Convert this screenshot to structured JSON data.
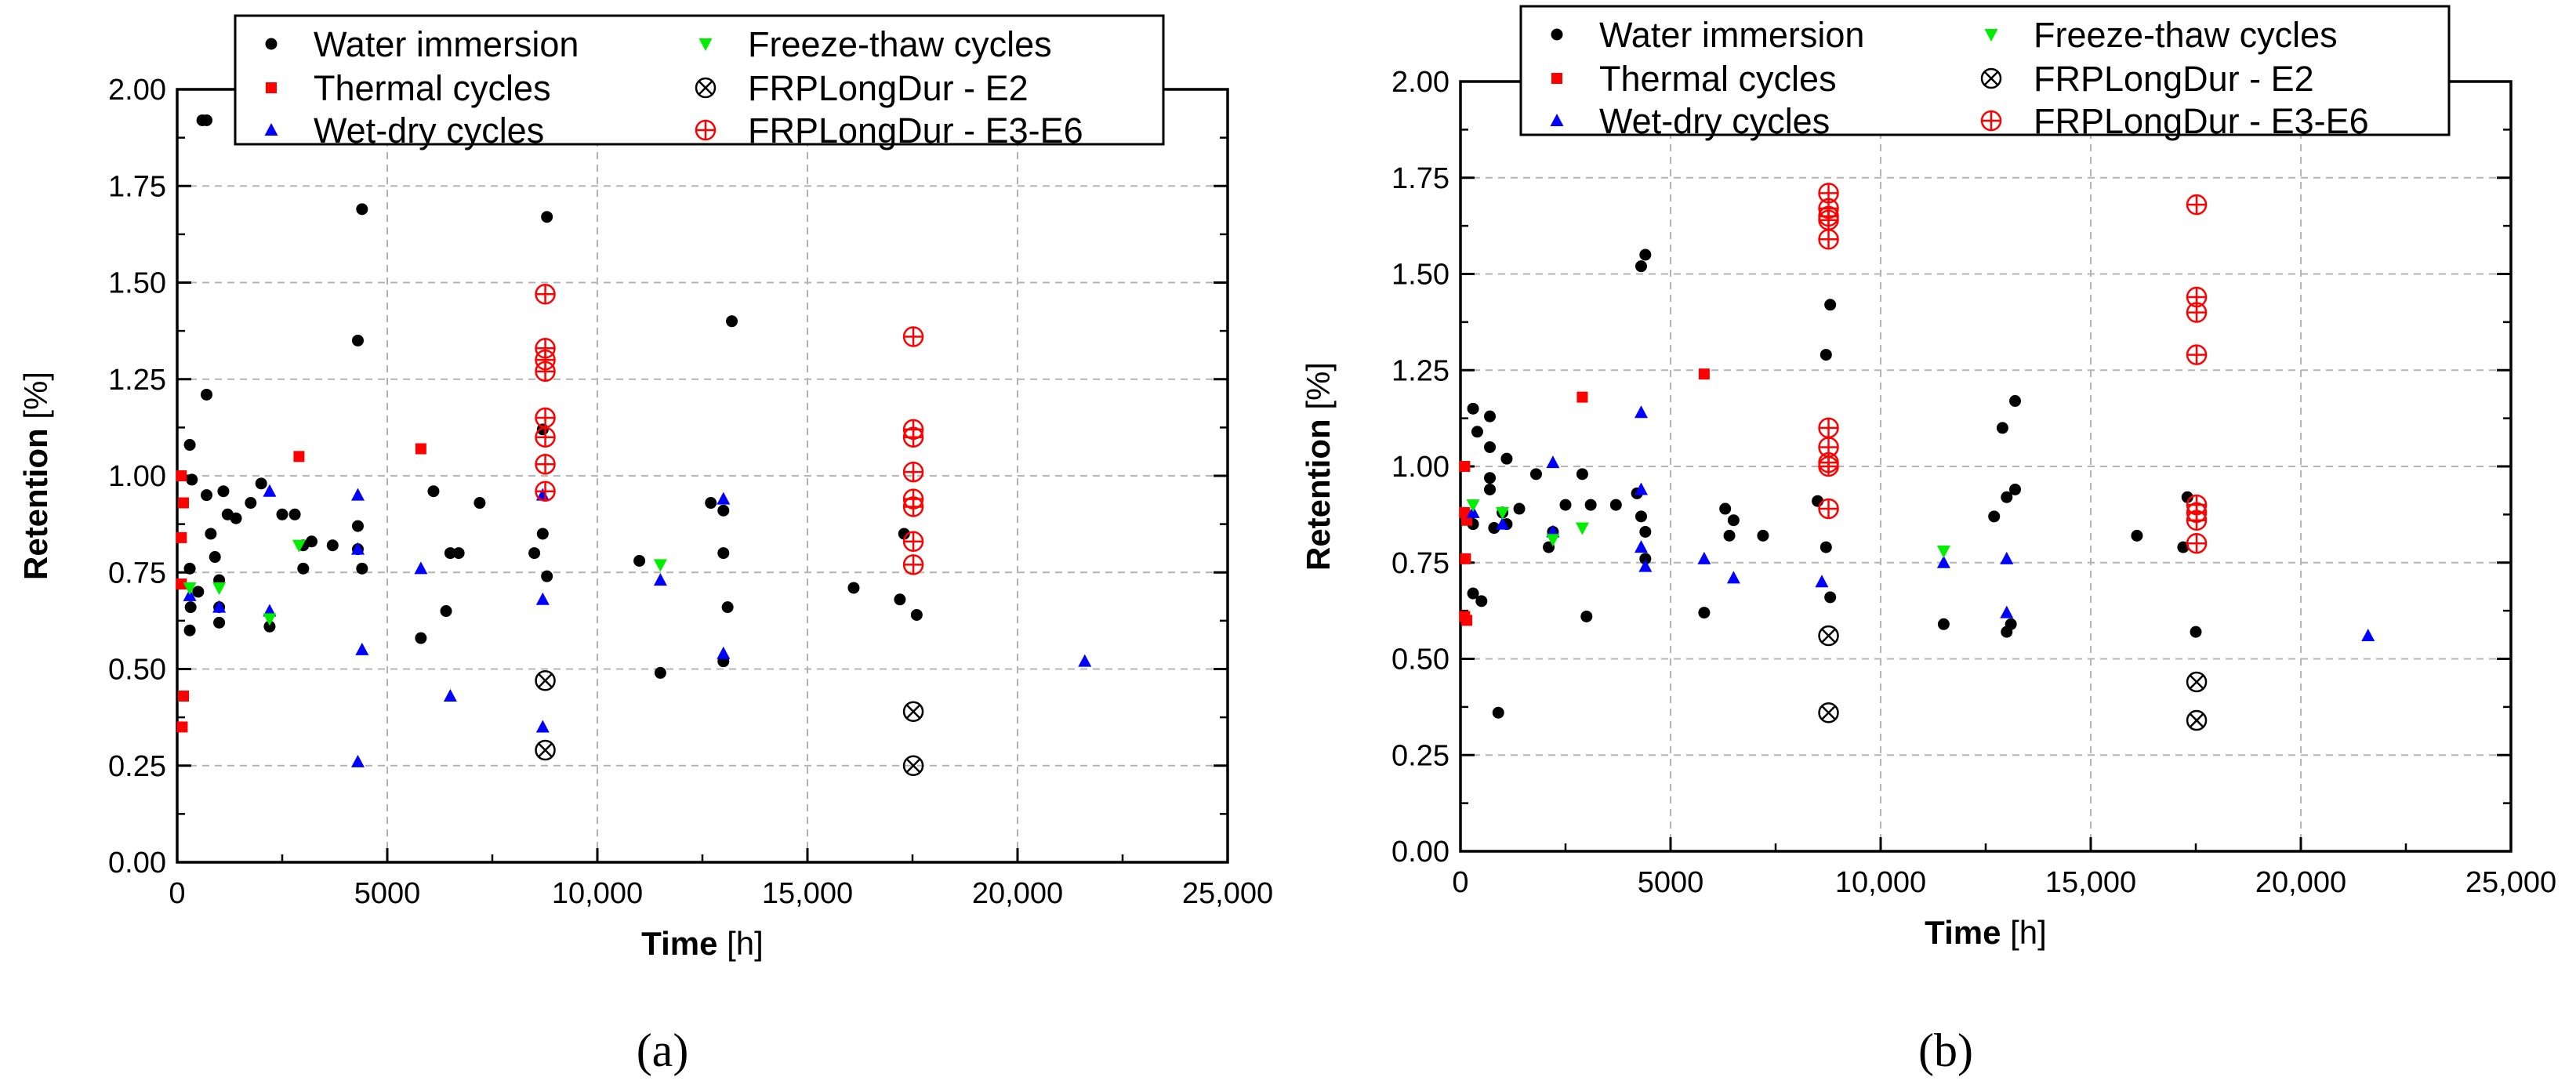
{
  "chart_data": [
    {
      "panel_label": "(a)",
      "type": "scatter",
      "xlabel": {
        "bold": "Time",
        "unit": " [h]"
      },
      "ylabel": {
        "bold": "Retention",
        "unit": " [%]"
      },
      "xlim": [
        0,
        25000
      ],
      "ylim": [
        0,
        2.0
      ],
      "xticks": [
        0,
        5000,
        10000,
        15000,
        20000,
        25000
      ],
      "xtick_labels": [
        "0",
        "5000",
        "10,000",
        "15,000",
        "20,000",
        "25,000"
      ],
      "yticks": [
        0,
        0.25,
        0.5,
        0.75,
        1.0,
        1.25,
        1.5,
        1.75,
        2.0
      ],
      "ytick_labels": [
        "0.00",
        "0.25",
        "0.50",
        "0.75",
        "1.00",
        "1.25",
        "1.50",
        "1.75",
        "2.00"
      ],
      "grid": true,
      "legend_position": "top-center",
      "series": [
        {
          "name": "Water immersion",
          "marker": "circle",
          "color": "#000000",
          "points": [
            [
              300,
              1.08
            ],
            [
              350,
              0.99
            ],
            [
              300,
              0.6
            ],
            [
              320,
              0.66
            ],
            [
              300,
              0.76
            ],
            [
              500,
              0.7
            ],
            [
              600,
              1.92
            ],
            [
              700,
              1.92
            ],
            [
              700,
              1.21
            ],
            [
              700,
              0.95
            ],
            [
              800,
              0.85
            ],
            [
              900,
              0.79
            ],
            [
              1000,
              0.73
            ],
            [
              1000,
              0.66
            ],
            [
              1000,
              0.62
            ],
            [
              1100,
              0.96
            ],
            [
              1200,
              0.9
            ],
            [
              1400,
              0.89
            ],
            [
              1750,
              0.93
            ],
            [
              2000,
              0.98
            ],
            [
              2200,
              0.61
            ],
            [
              2500,
              0.9
            ],
            [
              2800,
              0.9
            ],
            [
              3000,
              0.82
            ],
            [
              3000,
              0.76
            ],
            [
              3200,
              0.83
            ],
            [
              3700,
              0.82
            ],
            [
              4300,
              0.87
            ],
            [
              4300,
              0.81
            ],
            [
              4400,
              0.76
            ],
            [
              4300,
              1.35
            ],
            [
              4400,
              1.69
            ],
            [
              5800,
              0.58
            ],
            [
              6100,
              0.96
            ],
            [
              6400,
              0.65
            ],
            [
              6500,
              0.8
            ],
            [
              6700,
              0.8
            ],
            [
              7200,
              0.93
            ],
            [
              8500,
              0.8
            ],
            [
              8700,
              0.85
            ],
            [
              8700,
              1.12
            ],
            [
              8800,
              0.74
            ],
            [
              8800,
              1.67
            ],
            [
              11000,
              0.78
            ],
            [
              11500,
              0.49
            ],
            [
              12700,
              0.93
            ],
            [
              13000,
              0.91
            ],
            [
              13000,
              0.8
            ],
            [
              13000,
              0.52
            ],
            [
              13100,
              0.66
            ],
            [
              13200,
              1.4
            ],
            [
              16100,
              0.71
            ],
            [
              17200,
              0.68
            ],
            [
              17300,
              0.85
            ],
            [
              17600,
              0.64
            ]
          ]
        },
        {
          "name": "Thermal cycles",
          "marker": "square",
          "color": "#ff0000",
          "points": [
            [
              100,
              1.0
            ],
            [
              150,
              0.93
            ],
            [
              100,
              0.84
            ],
            [
              100,
              0.72
            ],
            [
              150,
              0.43
            ],
            [
              120,
              0.35
            ],
            [
              2900,
              1.05
            ],
            [
              5800,
              1.07
            ]
          ]
        },
        {
          "name": "Wet-dry cycles",
          "marker": "triangle-up",
          "color": "#0000ff",
          "points": [
            [
              300,
              0.69
            ],
            [
              1000,
              0.66
            ],
            [
              2200,
              0.96
            ],
            [
              2200,
              0.65
            ],
            [
              4300,
              0.95
            ],
            [
              4300,
              0.81
            ],
            [
              4400,
              0.55
            ],
            [
              4300,
              0.26
            ],
            [
              5800,
              0.76
            ],
            [
              6500,
              0.43
            ],
            [
              8700,
              0.95
            ],
            [
              8700,
              0.68
            ],
            [
              8700,
              0.35
            ],
            [
              11500,
              0.73
            ],
            [
              13000,
              0.94
            ],
            [
              13000,
              0.54
            ],
            [
              21600,
              0.52
            ]
          ]
        },
        {
          "name": "Freeze-thaw cycles",
          "marker": "triangle-down",
          "color": "#00ee00",
          "points": [
            [
              300,
              0.71
            ],
            [
              1000,
              0.71
            ],
            [
              2200,
              0.63
            ],
            [
              2900,
              0.82
            ],
            [
              11500,
              0.77
            ]
          ]
        },
        {
          "name": "FRPLongDur - E2",
          "marker": "circle-x",
          "color": "#000000",
          "points": [
            [
              8760,
              0.47
            ],
            [
              8760,
              0.29
            ],
            [
              17520,
              0.39
            ],
            [
              17520,
              0.25
            ]
          ]
        },
        {
          "name": "FRPLongDur - E3-E6",
          "marker": "circle-plus",
          "color": "#ff0000",
          "points": [
            [
              8760,
              1.47
            ],
            [
              8760,
              1.33
            ],
            [
              8760,
              1.3
            ],
            [
              8760,
              1.27
            ],
            [
              8760,
              1.15
            ],
            [
              8760,
              1.1
            ],
            [
              8760,
              1.03
            ],
            [
              8760,
              0.96
            ],
            [
              17520,
              1.36
            ],
            [
              17520,
              1.12
            ],
            [
              17520,
              1.1
            ],
            [
              17520,
              1.01
            ],
            [
              17520,
              0.94
            ],
            [
              17520,
              0.92
            ],
            [
              17520,
              0.83
            ],
            [
              17520,
              0.77
            ]
          ]
        }
      ]
    },
    {
      "panel_label": "(b)",
      "type": "scatter",
      "xlabel": {
        "bold": "Time",
        "unit": " [h]"
      },
      "ylabel": {
        "bold": "Retention",
        "unit": " [%]"
      },
      "xlim": [
        0,
        25000
      ],
      "ylim": [
        0,
        2.0
      ],
      "xticks": [
        0,
        5000,
        10000,
        15000,
        20000,
        25000
      ],
      "xtick_labels": [
        "0",
        "5000",
        "10,000",
        "15,000",
        "20,000",
        "25,000"
      ],
      "yticks": [
        0,
        0.25,
        0.5,
        0.75,
        1.0,
        1.25,
        1.5,
        1.75,
        2.0
      ],
      "ytick_labels": [
        "0.00",
        "0.25",
        "0.50",
        "0.75",
        "1.00",
        "1.25",
        "1.50",
        "1.75",
        "2.00"
      ],
      "grid": true,
      "legend_position": "top-center",
      "series": [
        {
          "name": "Water immersion",
          "marker": "circle",
          "color": "#000000",
          "points": [
            [
              200,
              0.87
            ],
            [
              300,
              1.15
            ],
            [
              400,
              1.09
            ],
            [
              300,
              0.85
            ],
            [
              300,
              0.67
            ],
            [
              500,
              0.65
            ],
            [
              700,
              1.13
            ],
            [
              700,
              1.05
            ],
            [
              700,
              0.97
            ],
            [
              700,
              0.94
            ],
            [
              800,
              0.84
            ],
            [
              900,
              0.36
            ],
            [
              1000,
              0.88
            ],
            [
              1100,
              1.02
            ],
            [
              1100,
              0.85
            ],
            [
              1400,
              0.89
            ],
            [
              1800,
              0.98
            ],
            [
              2100,
              0.79
            ],
            [
              2200,
              0.83
            ],
            [
              2500,
              0.9
            ],
            [
              2900,
              0.98
            ],
            [
              3000,
              0.61
            ],
            [
              3100,
              0.9
            ],
            [
              3700,
              0.9
            ],
            [
              4200,
              0.93
            ],
            [
              4300,
              1.52
            ],
            [
              4400,
              1.55
            ],
            [
              4300,
              0.87
            ],
            [
              4400,
              0.83
            ],
            [
              4400,
              0.76
            ],
            [
              5800,
              0.62
            ],
            [
              6300,
              0.89
            ],
            [
              6400,
              0.82
            ],
            [
              6500,
              0.86
            ],
            [
              7200,
              0.82
            ],
            [
              8500,
              0.91
            ],
            [
              8700,
              1.29
            ],
            [
              8700,
              0.79
            ],
            [
              8800,
              1.42
            ],
            [
              8800,
              0.66
            ],
            [
              11500,
              0.59
            ],
            [
              12700,
              0.87
            ],
            [
              12900,
              1.1
            ],
            [
              13000,
              0.92
            ],
            [
              13000,
              0.57
            ],
            [
              13100,
              0.59
            ],
            [
              13200,
              1.17
            ],
            [
              13200,
              0.94
            ],
            [
              16100,
              0.82
            ],
            [
              17200,
              0.79
            ],
            [
              17300,
              0.92
            ],
            [
              17500,
              0.57
            ]
          ]
        },
        {
          "name": "Thermal cycles",
          "marker": "square",
          "color": "#ff0000",
          "points": [
            [
              100,
              1.0
            ],
            [
              100,
              0.88
            ],
            [
              150,
              0.86
            ],
            [
              120,
              0.76
            ],
            [
              100,
              0.61
            ],
            [
              150,
              0.6
            ],
            [
              2900,
              1.18
            ],
            [
              5800,
              1.24
            ]
          ]
        },
        {
          "name": "Wet-dry cycles",
          "marker": "triangle-up",
          "color": "#0000ff",
          "points": [
            [
              300,
              0.88
            ],
            [
              1000,
              0.85
            ],
            [
              2200,
              1.01
            ],
            [
              2200,
              0.83
            ],
            [
              4300,
              1.14
            ],
            [
              4300,
              0.94
            ],
            [
              4300,
              0.79
            ],
            [
              4400,
              0.74
            ],
            [
              5800,
              0.76
            ],
            [
              6500,
              0.71
            ],
            [
              8600,
              0.7
            ],
            [
              11500,
              0.75
            ],
            [
              13000,
              0.76
            ],
            [
              13000,
              0.62
            ],
            [
              21600,
              0.56
            ]
          ]
        },
        {
          "name": "Freeze-thaw cycles",
          "marker": "triangle-down",
          "color": "#00ee00",
          "points": [
            [
              300,
              0.9
            ],
            [
              1000,
              0.88
            ],
            [
              2200,
              0.81
            ],
            [
              2900,
              0.84
            ],
            [
              11500,
              0.78
            ]
          ]
        },
        {
          "name": "FRPLongDur - E2",
          "marker": "circle-x",
          "color": "#000000",
          "points": [
            [
              8760,
              0.56
            ],
            [
              8760,
              0.36
            ],
            [
              17520,
              0.44
            ],
            [
              17520,
              0.34
            ]
          ]
        },
        {
          "name": "FRPLongDur - E3-E6",
          "marker": "circle-plus",
          "color": "#ff0000",
          "points": [
            [
              8760,
              1.71
            ],
            [
              8760,
              1.67
            ],
            [
              8760,
              1.65
            ],
            [
              8760,
              1.64
            ],
            [
              8760,
              1.59
            ],
            [
              8760,
              1.1
            ],
            [
              8760,
              1.05
            ],
            [
              8760,
              1.01
            ],
            [
              8760,
              1.0
            ],
            [
              8760,
              0.89
            ],
            [
              17520,
              1.68
            ],
            [
              17520,
              1.44
            ],
            [
              17520,
              1.4
            ],
            [
              17520,
              1.29
            ],
            [
              17520,
              0.9
            ],
            [
              17520,
              0.88
            ],
            [
              17520,
              0.86
            ],
            [
              17520,
              0.8
            ]
          ]
        }
      ]
    }
  ]
}
